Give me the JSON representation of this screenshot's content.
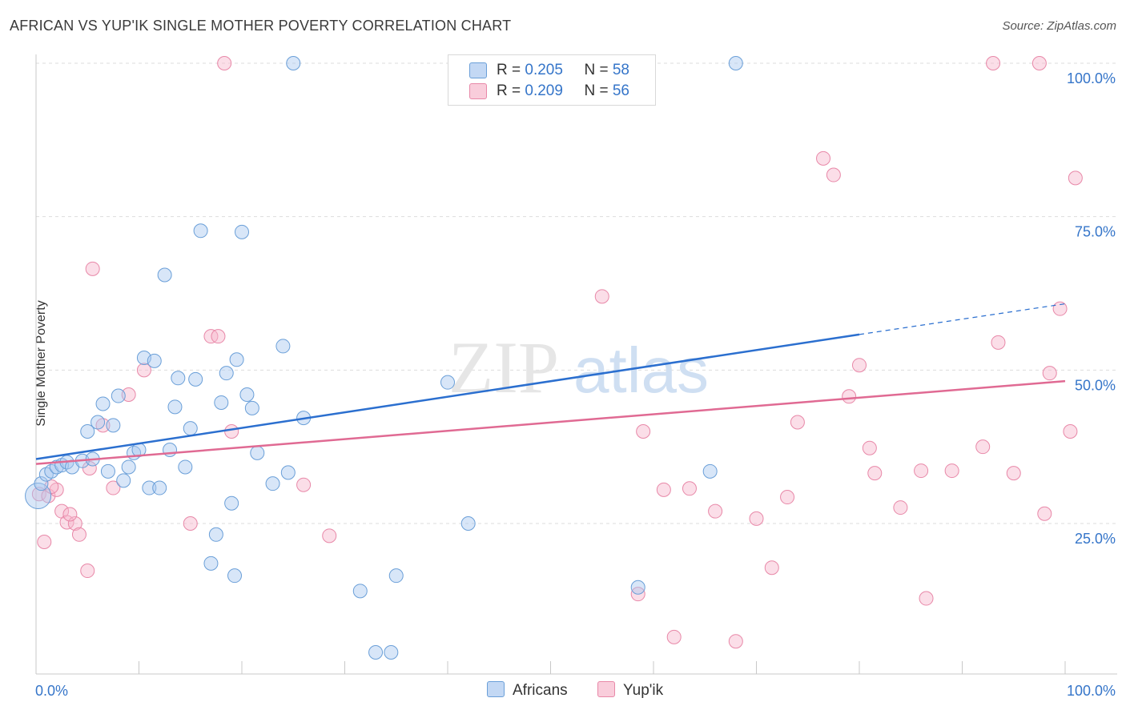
{
  "title": "AFRICAN VS YUP'IK SINGLE MOTHER POVERTY CORRELATION CHART",
  "source": "Source: ZipAtlas.com",
  "watermark": {
    "part1": "ZIP",
    "part2": "atlas"
  },
  "legend_top": {
    "rows": [
      {
        "r_label": "R = ",
        "r_value": "0.205",
        "n_label": "N = ",
        "n_value": "58"
      },
      {
        "r_label": "R = ",
        "r_value": "0.209",
        "n_label": "N = ",
        "n_value": "56"
      }
    ]
  },
  "legend_bottom": {
    "items": [
      "Africans",
      "Yup'ik"
    ]
  },
  "colors": {
    "africans_fill": "#a9c8f0",
    "africans_stroke": "#6a9fd8",
    "africans_line": "#2b6fcf",
    "yupik_fill": "#f6b6cb",
    "yupik_stroke": "#e888a8",
    "yupik_line": "#e06a93",
    "axis_value": "#3575c9",
    "grid": "#dddddd"
  },
  "chart_data": {
    "type": "scatter",
    "title": "AFRICAN VS YUP'IK SINGLE MOTHER POVERTY CORRELATION CHART",
    "xlabel": "",
    "ylabel": "Single Mother Poverty",
    "xlim": [
      0,
      100
    ],
    "ylim": [
      0,
      102
    ],
    "x_tick_labels": [
      "0.0%",
      "100.0%"
    ],
    "y_tick_labels": [
      "25.0%",
      "50.0%",
      "75.0%",
      "100.0%"
    ],
    "y_ticks": [
      25,
      50,
      75,
      100
    ],
    "grid": true,
    "legend_position": "top-center",
    "series": [
      {
        "name": "Africans",
        "r": 0.205,
        "n": 58,
        "trend": {
          "x0": 0,
          "y0": 35.5,
          "x1": 80,
          "y1": 55.8,
          "dash_to_x": 100,
          "dash_to_y": 60.8
        },
        "points": [
          [
            0.2,
            29.5
          ],
          [
            0.5,
            31.5
          ],
          [
            1.0,
            33.0
          ],
          [
            1.5,
            33.5
          ],
          [
            2.0,
            34.2
          ],
          [
            2.5,
            34.5
          ],
          [
            3.0,
            35.0
          ],
          [
            3.5,
            34.2
          ],
          [
            4.5,
            35.2
          ],
          [
            5.0,
            40.0
          ],
          [
            5.5,
            35.5
          ],
          [
            6.0,
            41.5
          ],
          [
            6.5,
            44.5
          ],
          [
            7.0,
            33.5
          ],
          [
            7.5,
            41.0
          ],
          [
            8.0,
            45.8
          ],
          [
            8.5,
            32.0
          ],
          [
            9.0,
            34.2
          ],
          [
            9.5,
            36.5
          ],
          [
            10.0,
            37.0
          ],
          [
            10.5,
            52.0
          ],
          [
            11.0,
            30.8
          ],
          [
            11.5,
            51.5
          ],
          [
            12.0,
            30.8
          ],
          [
            12.5,
            65.5
          ],
          [
            13.0,
            37.0
          ],
          [
            13.5,
            44.0
          ],
          [
            13.8,
            48.7
          ],
          [
            14.5,
            34.2
          ],
          [
            15.0,
            40.5
          ],
          [
            15.5,
            48.5
          ],
          [
            16.0,
            72.7
          ],
          [
            17.0,
            18.5
          ],
          [
            17.5,
            23.2
          ],
          [
            18.0,
            44.7
          ],
          [
            18.5,
            49.5
          ],
          [
            19.0,
            28.3
          ],
          [
            19.3,
            16.5
          ],
          [
            19.5,
            51.7
          ],
          [
            20.0,
            72.5
          ],
          [
            20.5,
            46.0
          ],
          [
            21.0,
            43.8
          ],
          [
            21.5,
            36.5
          ],
          [
            23.0,
            31.5
          ],
          [
            24.0,
            53.9
          ],
          [
            25.0,
            100.0
          ],
          [
            24.5,
            33.3
          ],
          [
            26.0,
            42.2
          ],
          [
            31.5,
            14.0
          ],
          [
            33.0,
            4.0
          ],
          [
            34.5,
            4.0
          ],
          [
            35.0,
            16.5
          ],
          [
            40.0,
            48.0
          ],
          [
            42.0,
            25.0
          ],
          [
            58.0,
            100.0
          ],
          [
            58.5,
            14.6
          ],
          [
            65.5,
            33.5
          ],
          [
            68.0,
            100.0
          ]
        ]
      },
      {
        "name": "Yup'ik",
        "r": 0.209,
        "n": 56,
        "trend": {
          "x0": 0,
          "y0": 34.7,
          "x1": 100,
          "y1": 48.2
        },
        "points": [
          [
            0.3,
            29.8
          ],
          [
            0.8,
            22.0
          ],
          [
            1.2,
            29.5
          ],
          [
            2.0,
            30.5
          ],
          [
            2.5,
            27.0
          ],
          [
            3.0,
            25.2
          ],
          [
            3.8,
            25.0
          ],
          [
            4.2,
            23.2
          ],
          [
            5.0,
            17.3
          ],
          [
            5.2,
            34.0
          ],
          [
            5.5,
            66.5
          ],
          [
            6.5,
            41.0
          ],
          [
            7.5,
            30.8
          ],
          [
            9.0,
            46.0
          ],
          [
            10.5,
            50.0
          ],
          [
            15.0,
            25.0
          ],
          [
            17.0,
            55.5
          ],
          [
            17.7,
            55.5
          ],
          [
            18.3,
            100.0
          ],
          [
            19.0,
            40.0
          ],
          [
            26.0,
            31.3
          ],
          [
            28.5,
            23.0
          ],
          [
            55.0,
            62.0
          ],
          [
            58.5,
            13.5
          ],
          [
            59.0,
            40.0
          ],
          [
            61.0,
            30.5
          ],
          [
            62.0,
            6.5
          ],
          [
            63.5,
            30.7
          ],
          [
            66.0,
            27.0
          ],
          [
            68.0,
            5.8
          ],
          [
            70.0,
            25.8
          ],
          [
            71.5,
            17.8
          ],
          [
            73.0,
            29.3
          ],
          [
            74.0,
            41.5
          ],
          [
            76.5,
            84.5
          ],
          [
            77.5,
            81.8
          ],
          [
            79.0,
            45.7
          ],
          [
            80.0,
            50.8
          ],
          [
            81.0,
            37.3
          ],
          [
            81.5,
            33.2
          ],
          [
            84.0,
            27.6
          ],
          [
            86.0,
            33.6
          ],
          [
            86.5,
            12.8
          ],
          [
            89.0,
            33.6
          ],
          [
            92.0,
            37.5
          ],
          [
            93.0,
            100.0
          ],
          [
            93.5,
            54.5
          ],
          [
            95.0,
            33.2
          ],
          [
            97.5,
            100.0
          ],
          [
            98.0,
            26.6
          ],
          [
            98.5,
            49.5
          ],
          [
            99.5,
            60.0
          ],
          [
            100.5,
            40.0
          ],
          [
            101.0,
            81.3
          ],
          [
            1.5,
            31.0
          ],
          [
            3.3,
            26.5
          ]
        ]
      }
    ]
  }
}
